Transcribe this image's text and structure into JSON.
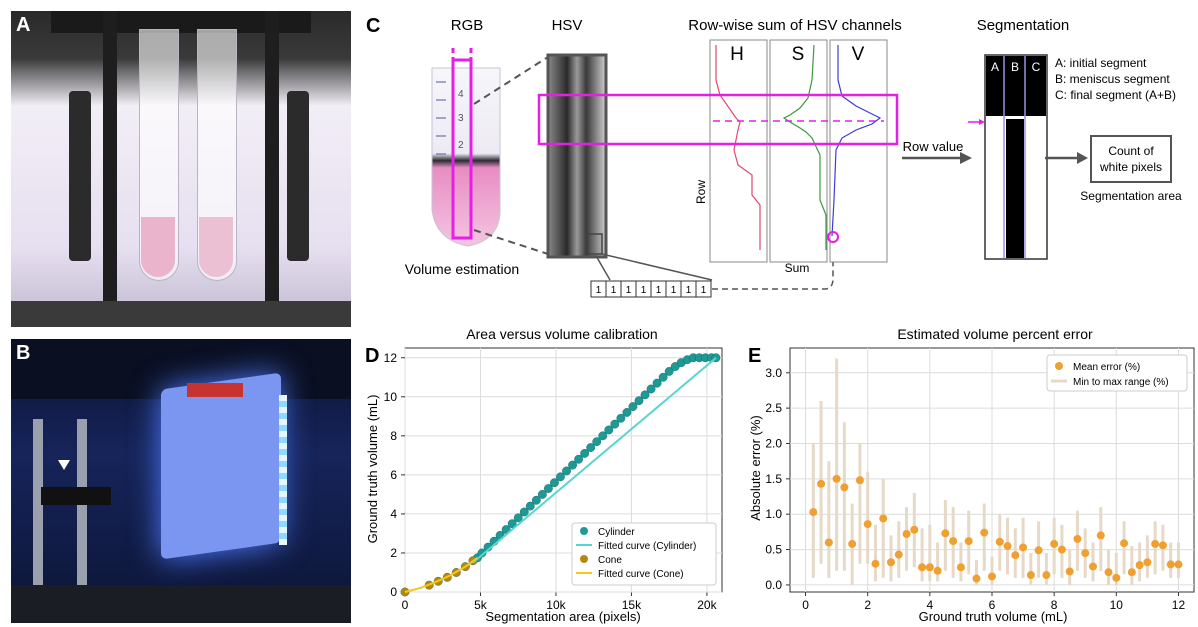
{
  "panels": {
    "a": "A",
    "b": "B",
    "c": "C",
    "d": "D",
    "e": "E"
  },
  "panel_c": {
    "rgb_title": "RGB",
    "hsv_title": "HSV",
    "rowsum_title": "Row-wise sum of HSV channels",
    "seg_title": "Segmentation",
    "channel_h": "H",
    "channel_s": "S",
    "channel_v": "V",
    "row_axis": "Row",
    "sum_axis": "Sum",
    "volume_estimation": "Volume estimation",
    "row_value": "Row value",
    "count_box": [
      "Count of",
      "white pixels"
    ],
    "segmentation_area": "Segmentation area",
    "seg_cols": [
      "A",
      "B",
      "C"
    ],
    "seg_legend": [
      "A: initial segment",
      "B: meniscus segment",
      "C: final segment (A+B)"
    ],
    "binary_row": [
      "1",
      "1",
      "1",
      "1",
      "1",
      "1",
      "1",
      "1"
    ],
    "tube_marks": [
      "4",
      "3",
      "2"
    ],
    "colors": {
      "magenta": "#e61ee6",
      "hue": "#e0476e",
      "sat": "#3a9a3a",
      "val": "#3b3bd8"
    }
  },
  "chart_data": [
    {
      "type": "scatter",
      "panel": "D",
      "title": "Area versus volume calibration",
      "xlabel": "Segmentation area (pixels)",
      "ylabel": "Ground truth volume (mL)",
      "xlim": [
        0,
        21000
      ],
      "ylim": [
        0,
        12.5
      ],
      "xticks": [
        0,
        5000,
        10000,
        15000,
        20000
      ],
      "xtick_labels": [
        "0",
        "5k",
        "10k",
        "15k",
        "20k"
      ],
      "yticks": [
        0,
        2,
        4,
        6,
        8,
        10,
        12
      ],
      "grid": true,
      "legend_position": "lower-right",
      "series": [
        {
          "name": "Cylinder",
          "kind": "points",
          "color": "#1e9a96",
          "x": [
            4800,
            5100,
            5500,
            5900,
            6300,
            6700,
            7100,
            7500,
            7900,
            8300,
            8700,
            9100,
            9500,
            9900,
            10300,
            10700,
            11100,
            11500,
            11900,
            12300,
            12700,
            13100,
            13500,
            13900,
            14300,
            14700,
            15100,
            15500,
            15900,
            16300,
            16700,
            17100,
            17500,
            17900,
            18300,
            18700,
            19100,
            19500,
            19900,
            20300,
            20600
          ],
          "y": [
            1.75,
            2.0,
            2.3,
            2.6,
            2.9,
            3.2,
            3.5,
            3.8,
            4.1,
            4.4,
            4.7,
            5.0,
            5.3,
            5.6,
            5.9,
            6.2,
            6.5,
            6.8,
            7.1,
            7.4,
            7.7,
            8.0,
            8.3,
            8.6,
            8.9,
            9.2,
            9.5,
            9.8,
            10.1,
            10.4,
            10.7,
            11.0,
            11.3,
            11.55,
            11.75,
            11.9,
            12.0,
            12.0,
            12.0,
            12.0,
            12.0
          ]
        },
        {
          "name": "Fitted curve (Cylinder)",
          "kind": "line",
          "color": "#5ad4d0",
          "x": [
            4500,
            20600
          ],
          "y": [
            1.5,
            12.0
          ]
        },
        {
          "name": "Cone",
          "kind": "points",
          "color": "#b8860b",
          "x": [
            0,
            1600,
            2200,
            2800,
            3400,
            4000,
            4500
          ],
          "y": [
            0.0,
            0.35,
            0.55,
            0.75,
            1.0,
            1.3,
            1.6
          ]
        },
        {
          "name": "Fitted curve (Cone)",
          "kind": "line",
          "color": "#f2c81e",
          "x": [
            0,
            1000,
            2000,
            3000,
            4000,
            4800
          ],
          "y": [
            0.0,
            0.2,
            0.5,
            0.85,
            1.3,
            1.75
          ]
        }
      ]
    },
    {
      "type": "scatter",
      "panel": "E",
      "title": "Estimated volume percent error",
      "xlabel": "Ground truth volume (mL)",
      "ylabel": "Absolute error (%)",
      "xlim": [
        -0.5,
        12.5
      ],
      "ylim": [
        -0.1,
        3.35
      ],
      "xticks": [
        0,
        2,
        4,
        6,
        8,
        10,
        12
      ],
      "yticks": [
        0.0,
        0.5,
        1.0,
        1.5,
        2.0,
        2.5,
        3.0
      ],
      "ytick_labels": [
        "0.0",
        "0.5",
        "1.0",
        "1.5",
        "2.0",
        "2.5",
        "3.0"
      ],
      "grid": true,
      "legend_position": "top-right",
      "series": [
        {
          "name": "Mean error (%)",
          "color": "#f0a030",
          "x": [
            0.25,
            0.5,
            0.75,
            1.0,
            1.25,
            1.5,
            1.75,
            2.0,
            2.25,
            2.5,
            2.75,
            3.0,
            3.25,
            3.5,
            3.75,
            4.0,
            4.25,
            4.5,
            4.75,
            5.0,
            5.25,
            5.5,
            5.75,
            6.0,
            6.25,
            6.5,
            6.75,
            7.0,
            7.25,
            7.5,
            7.75,
            8.0,
            8.25,
            8.5,
            8.75,
            9.0,
            9.25,
            9.5,
            9.75,
            10.0,
            10.25,
            10.5,
            10.75,
            11.0,
            11.25,
            11.5,
            11.75,
            12.0
          ],
          "mean": [
            1.03,
            1.43,
            0.6,
            1.5,
            1.38,
            0.58,
            1.48,
            0.86,
            0.3,
            0.94,
            0.32,
            0.43,
            0.72,
            0.78,
            0.25,
            0.25,
            0.2,
            0.73,
            0.62,
            0.25,
            0.62,
            0.09,
            0.74,
            0.12,
            0.61,
            0.55,
            0.42,
            0.53,
            0.14,
            0.49,
            0.14,
            0.58,
            0.5,
            0.19,
            0.65,
            0.45,
            0.26,
            0.7,
            0.18,
            0.1,
            0.59,
            0.18,
            0.28,
            0.32,
            0.58,
            0.56,
            0.29,
            0.29
          ],
          "min": [
            0.1,
            0.3,
            0.1,
            0.2,
            0.2,
            0.0,
            0.3,
            0.3,
            0.05,
            0.1,
            0.05,
            0.1,
            0.2,
            0.25,
            0.05,
            0.05,
            0.05,
            0.2,
            0.1,
            0.05,
            0.15,
            0.0,
            0.2,
            0.0,
            0.2,
            0.15,
            0.1,
            0.1,
            0.0,
            0.1,
            0.0,
            0.15,
            0.1,
            0.0,
            0.2,
            0.1,
            0.05,
            0.2,
            0.0,
            0.0,
            0.15,
            0.0,
            0.05,
            0.1,
            0.15,
            0.2,
            0.1,
            0.1
          ],
          "max": [
            2.0,
            2.6,
            1.75,
            3.2,
            2.3,
            1.15,
            2.0,
            1.6,
            0.85,
            1.5,
            0.7,
            0.9,
            1.1,
            1.3,
            0.8,
            0.85,
            0.6,
            1.2,
            1.1,
            0.6,
            1.05,
            0.35,
            1.15,
            0.4,
            1.0,
            0.95,
            0.8,
            0.95,
            0.45,
            0.9,
            0.45,
            0.95,
            0.85,
            0.5,
            1.05,
            0.8,
            0.6,
            1.1,
            0.5,
            0.45,
            0.9,
            0.55,
            0.6,
            0.7,
            0.9,
            0.85,
            0.6,
            0.6
          ]
        },
        {
          "name": "Min to max range (%)",
          "color": "#e6d9c8"
        }
      ]
    }
  ]
}
